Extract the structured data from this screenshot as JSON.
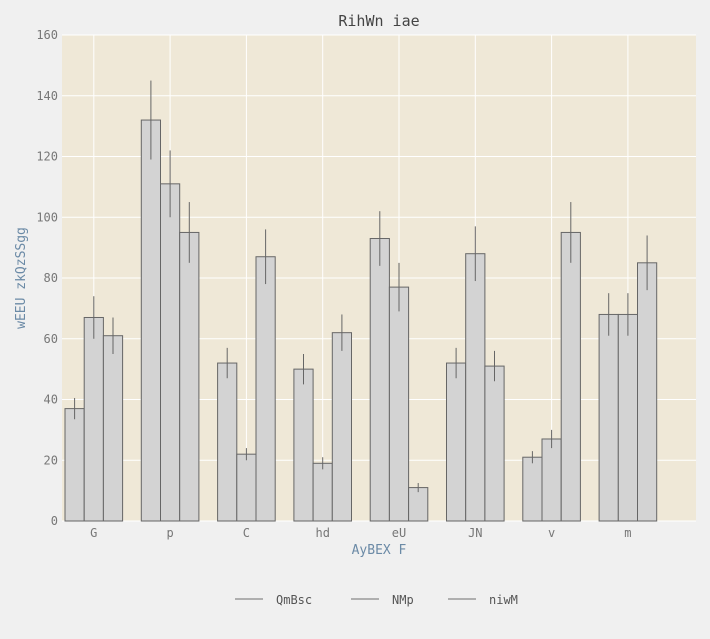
{
  "chart_data": {
    "type": "bar",
    "title": "RihWn iae",
    "xlabel": "AyBEX F",
    "ylabel": "wEEU zkQzSSgg",
    "categories": [
      "G",
      "p",
      "C",
      "hd",
      "eU",
      "JN",
      "v",
      "m"
    ],
    "ylim": [
      0,
      160
    ],
    "yticks": [
      0,
      20,
      40,
      60,
      80,
      100,
      120,
      140,
      160
    ],
    "grid": true,
    "legend_position": "bottom",
    "series": [
      {
        "name": "QmBsc",
        "values": [
          37,
          132,
          52,
          50,
          93,
          52,
          21,
          68
        ],
        "errors": [
          3.5,
          13,
          5,
          5,
          9,
          5,
          2,
          7
        ]
      },
      {
        "name": "NMp",
        "values": [
          67,
          111,
          22,
          19,
          77,
          88,
          27,
          68
        ],
        "errors": [
          7,
          11,
          2,
          2,
          8,
          9,
          3,
          7
        ]
      },
      {
        "name": "niwM",
        "values": [
          61,
          95,
          87,
          62,
          11,
          51,
          95,
          85
        ],
        "errors": [
          6,
          10,
          9,
          6,
          1.5,
          5,
          10,
          9
        ]
      }
    ],
    "colors": {
      "plot_background": "#efe8d7",
      "bar_fill": "#d3d3d3",
      "bar_edge": "#666666",
      "error_bar": "#666666",
      "grid": "#ffffff",
      "axis_label": "#6b8aa6"
    }
  }
}
